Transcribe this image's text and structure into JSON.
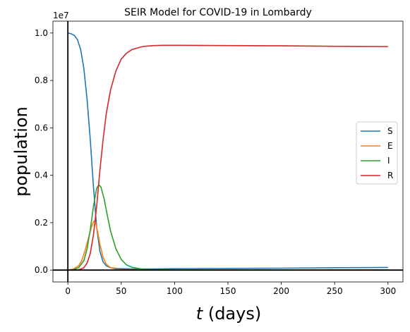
{
  "chart_data": {
    "type": "line",
    "title": "SEIR Model for COVID-19 in Lombardy",
    "xlabel_italic": "t",
    "xlabel_rest": " (days)",
    "ylabel": "population",
    "offset_label": "1e7",
    "xlim": [
      -14,
      314
    ],
    "ylim": [
      -0.05,
      1.05
    ],
    "xticks": [
      0,
      50,
      100,
      150,
      200,
      250,
      300
    ],
    "yticks": [
      0.0,
      0.2,
      0.4,
      0.6,
      0.8,
      1.0
    ],
    "xtick_labels": [
      "0",
      "50",
      "100",
      "150",
      "200",
      "250",
      "300"
    ],
    "ytick_labels": [
      "0.0",
      "0.2",
      "0.4",
      "0.6",
      "0.8",
      "1.0"
    ],
    "reference_lines": {
      "x": 0,
      "y": 0
    },
    "legend_position": "center-right",
    "series": [
      {
        "name": "S",
        "color": "#1f77b4",
        "x": [
          0,
          3,
          6,
          9,
          12,
          15,
          18,
          21,
          24,
          27,
          30,
          33,
          36,
          40,
          45,
          50,
          60,
          80,
          100,
          150,
          200,
          250,
          300
        ],
        "y": [
          1.0,
          0.997,
          0.99,
          0.972,
          0.93,
          0.85,
          0.72,
          0.55,
          0.35,
          0.18,
          0.08,
          0.035,
          0.018,
          0.01,
          0.007,
          0.006,
          0.005,
          0.005,
          0.006,
          0.007,
          0.008,
          0.01,
          0.011
        ]
      },
      {
        "name": "E",
        "color": "#ff7f0e",
        "x": [
          0,
          5,
          10,
          13,
          16,
          19,
          22,
          24,
          25,
          26,
          28,
          30,
          33,
          36,
          40,
          45,
          50,
          60,
          80,
          100,
          150,
          200,
          250,
          300
        ],
        "y": [
          0.0,
          0.004,
          0.018,
          0.04,
          0.08,
          0.13,
          0.18,
          0.205,
          0.207,
          0.2,
          0.16,
          0.11,
          0.055,
          0.025,
          0.01,
          0.004,
          0.0015,
          0.0005,
          0.0003,
          0.0003,
          0.0003,
          0.0003,
          0.0003,
          0.0003
        ]
      },
      {
        "name": "I",
        "color": "#2ca02c",
        "x": [
          0,
          5,
          10,
          15,
          18,
          21,
          24,
          27,
          29,
          31,
          34,
          37,
          40,
          45,
          50,
          55,
          60,
          70,
          80,
          100,
          150,
          200,
          250,
          300
        ],
        "y": [
          0.0,
          0.002,
          0.01,
          0.04,
          0.09,
          0.17,
          0.27,
          0.345,
          0.36,
          0.35,
          0.3,
          0.23,
          0.165,
          0.09,
          0.045,
          0.022,
          0.012,
          0.004,
          0.0015,
          0.0005,
          0.0003,
          0.0003,
          0.0003,
          0.0003
        ]
      },
      {
        "name": "R",
        "color": "#d62728",
        "x": [
          0,
          10,
          15,
          18,
          21,
          24,
          27,
          30,
          33,
          36,
          40,
          45,
          50,
          55,
          60,
          70,
          80,
          90,
          100,
          150,
          200,
          250,
          300
        ],
        "y": [
          0.0,
          0.001,
          0.01,
          0.03,
          0.07,
          0.15,
          0.27,
          0.42,
          0.55,
          0.66,
          0.76,
          0.84,
          0.89,
          0.915,
          0.93,
          0.943,
          0.947,
          0.948,
          0.948,
          0.947,
          0.946,
          0.944,
          0.943
        ]
      }
    ]
  }
}
